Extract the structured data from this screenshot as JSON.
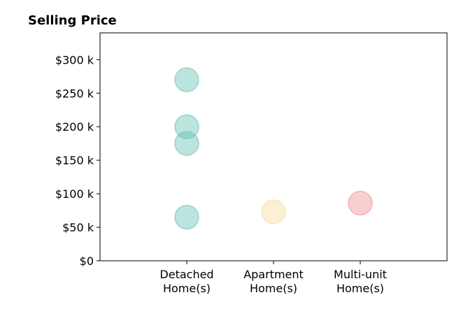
{
  "chart_data": {
    "type": "scatter",
    "title": "Selling Price",
    "xlabel": "",
    "ylabel": "",
    "categories": [
      [
        "Detached",
        "Home(s)"
      ],
      [
        "Apartment",
        "Home(s)"
      ],
      [
        "Multi-unit",
        "Home(s)"
      ]
    ],
    "points": [
      {
        "category": 0,
        "y": 270000
      },
      {
        "category": 0,
        "y": 200000
      },
      {
        "category": 0,
        "y": 175000
      },
      {
        "category": 0,
        "y": 65000
      },
      {
        "category": 1,
        "y": 73000
      },
      {
        "category": 2,
        "y": 86000
      }
    ],
    "category_colors": [
      "#5fbfb3",
      "#f7d89c",
      "#f08a92"
    ],
    "ylim": [
      0,
      340000
    ],
    "yticks": [
      0,
      50000,
      100000,
      150000,
      200000,
      250000,
      300000
    ],
    "ytick_labels": [
      "$0",
      "$50 k",
      "$100 k",
      "$150 k",
      "$200 k",
      "$250 k",
      "$300 k"
    ],
    "grid": false,
    "legend": "none"
  }
}
